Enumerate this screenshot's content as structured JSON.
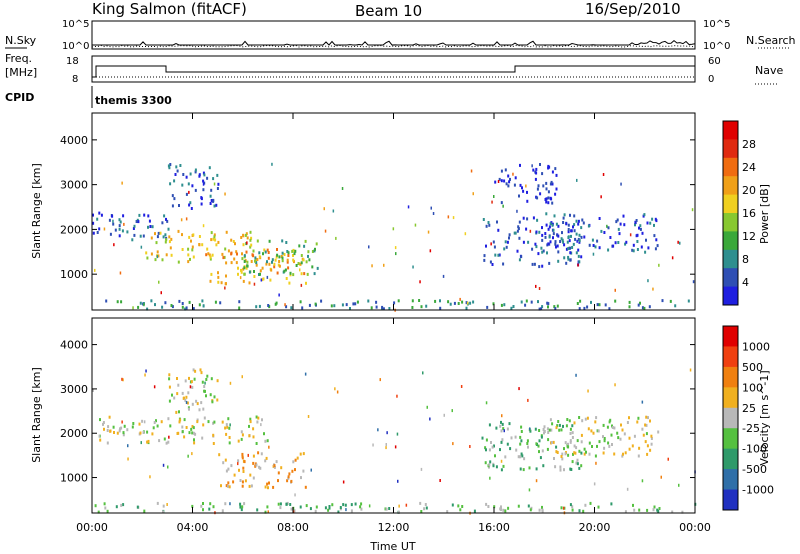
{
  "header": {
    "station": "King Salmon (fitACF)",
    "beam": "Beam 10",
    "date": "16/Sep/2010"
  },
  "aux_panels": {
    "nsky_label": "N.Sky",
    "nsky_ticks": [
      "10^5",
      "10^0"
    ],
    "nsearch_label": "N.Search",
    "nsearch_ticks": [
      "10^5",
      "10^0"
    ],
    "freq_label": "Freq.",
    "freq_unit": "[MHz]",
    "freq_ticks": [
      "18",
      "8"
    ],
    "nave_label": "Nave",
    "nave_ticks": [
      "60",
      "0"
    ],
    "cpid_label": "CPID",
    "cpid_value": "themis 3300"
  },
  "chart_data": [
    {
      "type": "heatmap",
      "panel": "power",
      "xlabel": "",
      "ylabel": "Slant Range [km]",
      "y_ticks": [
        "1000",
        "2000",
        "3000",
        "4000"
      ],
      "ylim": [
        200,
        4600
      ],
      "x_ticks": [
        "00:00",
        "04:00",
        "08:00",
        "12:00",
        "16:00",
        "20:00",
        "00:00"
      ],
      "xlim_hours": [
        0,
        24
      ],
      "colorbar": {
        "label": "Power [dB]",
        "ticks": [
          "4",
          "8",
          "12",
          "16",
          "20",
          "24",
          "28"
        ],
        "colors": [
          "#1f1fe0",
          "#2f4fb4",
          "#2f8f8f",
          "#3aa83a",
          "#88c830",
          "#f0d020",
          "#f0a018",
          "#f06c10",
          "#e02a10",
          "#e00000"
        ]
      },
      "regions": [
        {
          "t0": 0.0,
          "t1": 3.2,
          "r0": 1800,
          "r1": 2400,
          "level": 1
        },
        {
          "t0": 2.0,
          "t1": 6.5,
          "r0": 1300,
          "r1": 2000,
          "level": 5
        },
        {
          "t0": 4.5,
          "t1": 8.5,
          "r0": 800,
          "r1": 1600,
          "level": 6
        },
        {
          "t0": 3.0,
          "t1": 5.0,
          "r0": 2500,
          "r1": 3500,
          "level": 1
        },
        {
          "t0": 6.0,
          "t1": 9.0,
          "r0": 1000,
          "r1": 1800,
          "level": 3
        },
        {
          "t0": 15.5,
          "t1": 19.5,
          "r0": 1200,
          "r1": 2300,
          "level": 1
        },
        {
          "t0": 18.0,
          "t1": 22.5,
          "r0": 1500,
          "r1": 2400,
          "level": 1
        },
        {
          "t0": 16.0,
          "t1": 18.5,
          "r0": 2600,
          "r1": 3500,
          "level": 0
        },
        {
          "t0": 0.0,
          "t1": 24.0,
          "r0": 250,
          "r1": 450,
          "level": 2
        }
      ]
    },
    {
      "type": "heatmap",
      "panel": "velocity",
      "xlabel": "Time UT",
      "ylabel": "Slant Range [km]",
      "y_ticks": [
        "1000",
        "2000",
        "3000",
        "4000"
      ],
      "ylim": [
        200,
        4600
      ],
      "x_ticks": [
        "00:00",
        "04:00",
        "08:00",
        "12:00",
        "16:00",
        "20:00",
        "00:00"
      ],
      "xlim_hours": [
        0,
        24
      ],
      "colorbar": {
        "label": "Velocity [m s^-1]",
        "ticks": [
          "1000",
          "500",
          "100",
          "25",
          "-25",
          "-100",
          "-500",
          "-1000"
        ],
        "colors": [
          "#2030c0",
          "#2f6fa8",
          "#2f9a6a",
          "#55c040",
          "#b8b8b8",
          "#f0b020",
          "#f08010",
          "#f04010",
          "#e00000"
        ]
      },
      "regions": [
        {
          "t0": 0.0,
          "t1": 7.0,
          "r0": 1800,
          "r1": 2400,
          "level": 4
        },
        {
          "t0": 5.0,
          "t1": 8.5,
          "r0": 800,
          "r1": 1600,
          "level": 5
        },
        {
          "t0": 3.0,
          "t1": 5.0,
          "r0": 2500,
          "r1": 3500,
          "level": 4
        },
        {
          "t0": 15.5,
          "t1": 19.5,
          "r0": 1200,
          "r1": 2300,
          "level": 3
        },
        {
          "t0": 18.0,
          "t1": 22.5,
          "r0": 1500,
          "r1": 2400,
          "level": 4
        },
        {
          "t0": 0.0,
          "t1": 24.0,
          "r0": 250,
          "r1": 450,
          "level": 3
        }
      ]
    }
  ]
}
